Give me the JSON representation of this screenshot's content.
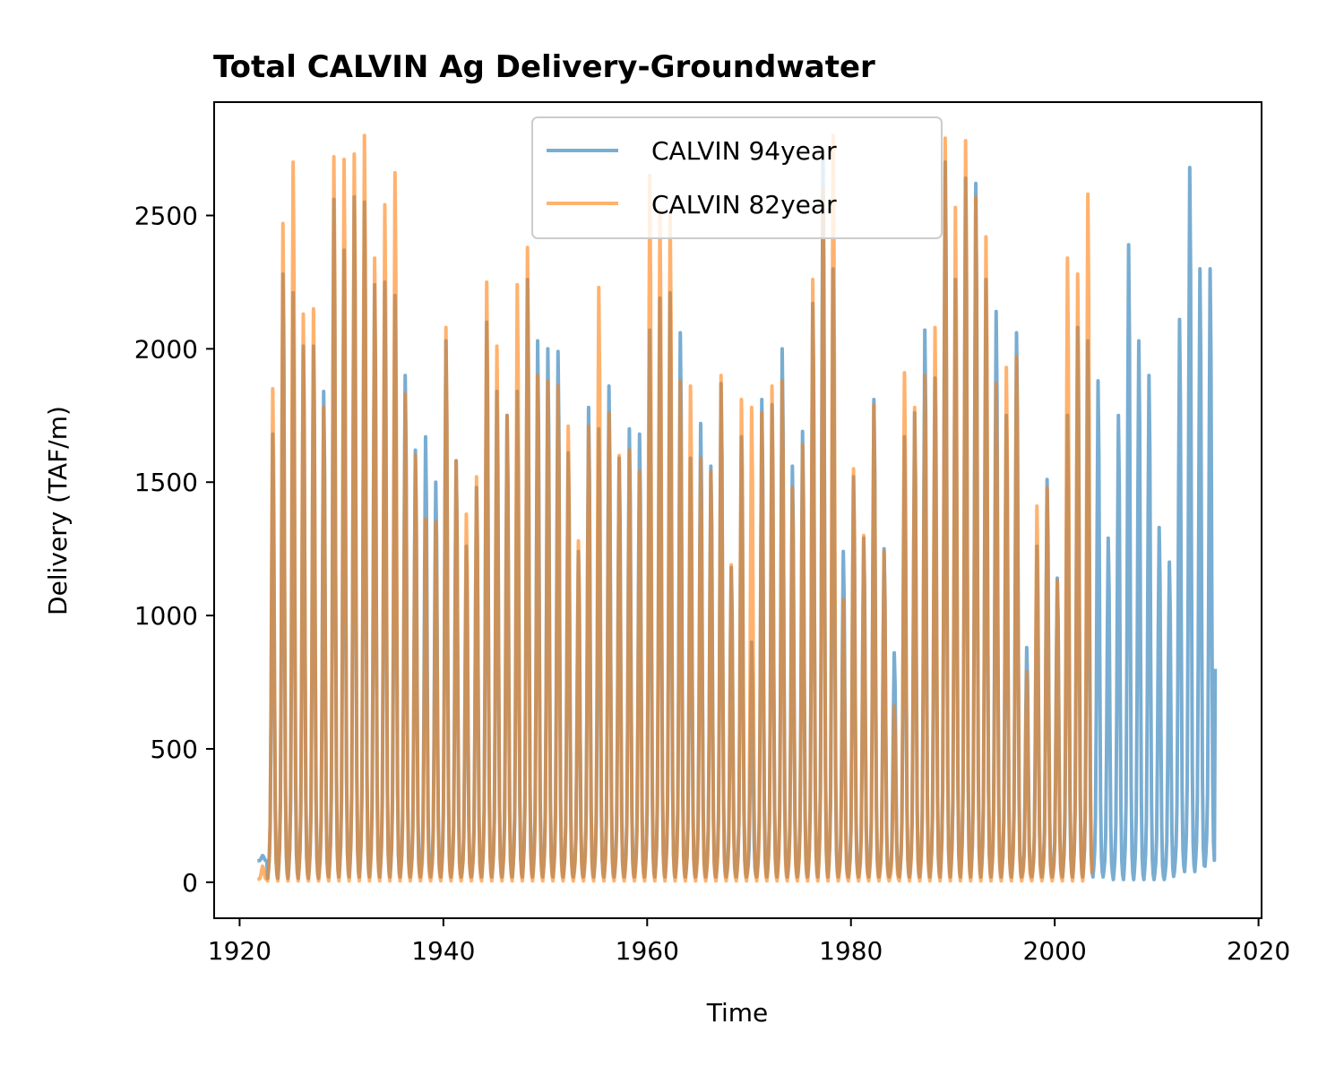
{
  "chart_data": {
    "type": "line",
    "title": "Total CALVIN Ag Delivery-Groundwater",
    "xlabel": "Time",
    "ylabel": "Delivery (TAF/m)",
    "xlim": [
      1917.5,
      2020.3
    ],
    "ylim": [
      -135,
      2925
    ],
    "x_ticks": [
      1920,
      1940,
      1960,
      1980,
      2000,
      2020
    ],
    "y_ticks": [
      0,
      500,
      1000,
      1500,
      2000,
      2500
    ],
    "legend_position": "upper center",
    "series": [
      {
        "name": "CALVIN 94year",
        "color": "#1f77b4",
        "opacity": 0.6,
        "start_year": 1921.75,
        "end_year": 2015.75,
        "note_shape": "monthly seasonal cycle",
        "annual_peaks": [
          100,
          1680,
          2280,
          2210,
          2010,
          2010,
          1840,
          2560,
          2370,
          2570,
          2550,
          2240,
          2250,
          2200,
          1900,
          1620,
          1670,
          1500,
          2030,
          1580,
          1260,
          1480,
          2100,
          1840,
          1750,
          1840,
          2260,
          2030,
          2000,
          1990,
          1610,
          1240,
          1780,
          1700,
          1860,
          1590,
          1700,
          1680,
          2070,
          2190,
          2210,
          2060,
          1590,
          1720,
          1560,
          1870,
          1180,
          1670,
          900,
          1810,
          1790,
          2000,
          1560,
          1690,
          2170,
          2750,
          2300,
          1240,
          1520,
          1290,
          1810,
          1250,
          860,
          1670,
          1760,
          2070,
          1890,
          2700,
          2260,
          2640,
          2620,
          2260,
          2140,
          1750,
          2060,
          880,
          1260,
          1510,
          1140,
          1750,
          2080,
          2030,
          1880,
          1290,
          1750,
          2390,
          2030,
          1900,
          1330,
          1200,
          2110,
          2680,
          2300,
          2300
        ],
        "annual_troughs": [
          80,
          15,
          15,
          15,
          15,
          15,
          15,
          20,
          20,
          20,
          20,
          20,
          20,
          20,
          20,
          20,
          20,
          20,
          20,
          20,
          20,
          20,
          20,
          20,
          20,
          20,
          20,
          20,
          20,
          20,
          20,
          20,
          20,
          20,
          20,
          20,
          20,
          20,
          20,
          20,
          20,
          20,
          20,
          20,
          20,
          20,
          20,
          20,
          20,
          20,
          20,
          20,
          20,
          20,
          20,
          20,
          20,
          20,
          20,
          20,
          20,
          20,
          20,
          20,
          20,
          20,
          20,
          20,
          20,
          20,
          20,
          20,
          20,
          20,
          20,
          20,
          20,
          20,
          20,
          20,
          20,
          20,
          20,
          20,
          10,
          10,
          10,
          10,
          10,
          10,
          40,
          40,
          40,
          60
        ],
        "final_value": 800
      },
      {
        "name": "CALVIN 82year",
        "color": "#ff7f0e",
        "opacity": 0.6,
        "start_year": 1921.75,
        "end_year": 2003.75,
        "note_shape": "monthly seasonal cycle",
        "annual_peaks": [
          60,
          1850,
          2470,
          2700,
          2130,
          2150,
          1780,
          2720,
          2710,
          2730,
          2800,
          2340,
          2540,
          2660,
          1830,
          1600,
          1360,
          1350,
          2080,
          1580,
          1380,
          1520,
          2250,
          2010,
          1750,
          2240,
          2380,
          1900,
          1880,
          1860,
          1710,
          1280,
          1710,
          2230,
          1760,
          1600,
          1620,
          1540,
          2650,
          2520,
          2510,
          1880,
          1860,
          1590,
          1540,
          1900,
          1190,
          1810,
          1780,
          1760,
          1860,
          1880,
          1480,
          1640,
          2260,
          2600,
          2800,
          1060,
          1550,
          1300,
          1790,
          1240,
          660,
          1910,
          1780,
          1900,
          2080,
          2790,
          2530,
          2780,
          2570,
          2420,
          1870,
          1930,
          1970,
          790,
          1410,
          1480,
          1130,
          2340,
          2280,
          2580
        ],
        "annual_troughs": [
          10,
          5,
          5,
          5,
          5,
          5,
          5,
          5,
          5,
          5,
          5,
          5,
          5,
          5,
          5,
          5,
          5,
          5,
          5,
          5,
          5,
          5,
          5,
          5,
          5,
          5,
          5,
          5,
          5,
          5,
          5,
          5,
          5,
          5,
          5,
          5,
          5,
          5,
          5,
          5,
          5,
          5,
          5,
          5,
          5,
          5,
          5,
          5,
          5,
          5,
          5,
          5,
          5,
          5,
          5,
          5,
          5,
          5,
          5,
          5,
          5,
          5,
          5,
          5,
          5,
          5,
          5,
          5,
          5,
          5,
          5,
          5,
          5,
          5,
          5,
          5,
          5,
          5,
          5,
          5,
          5,
          5
        ]
      }
    ]
  }
}
